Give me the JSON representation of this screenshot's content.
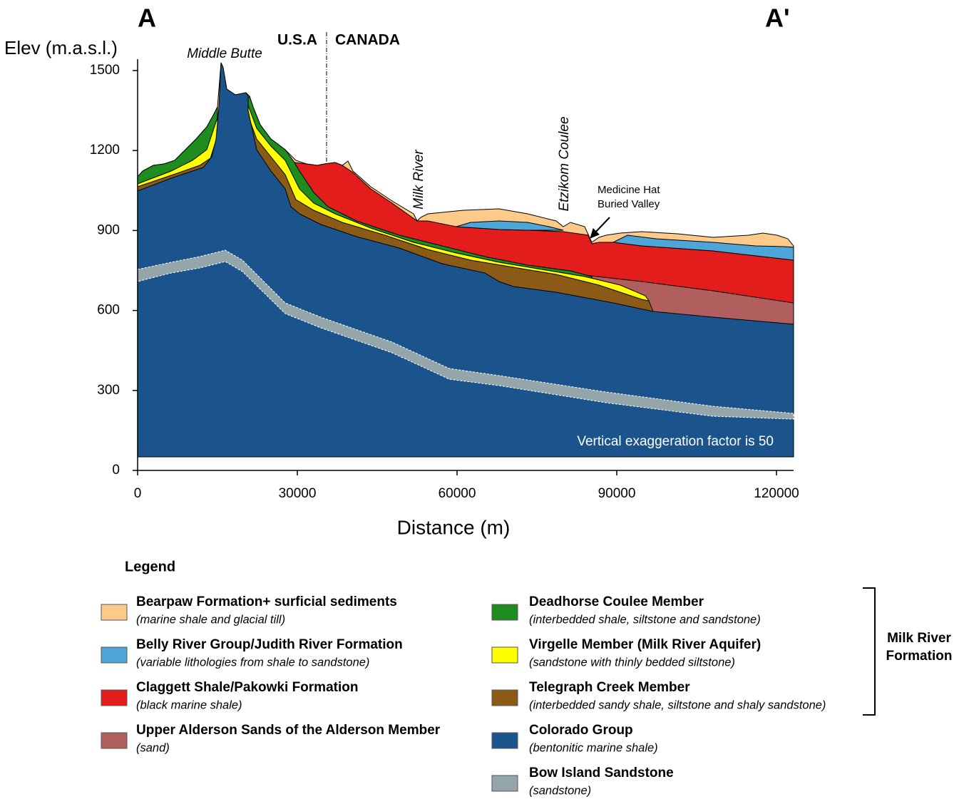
{
  "labels": {
    "section_start": "A",
    "section_end": "A'",
    "y_axis": "Elev (m.a.s.l.)",
    "x_axis": "Distance (m)",
    "summit": "Middle Butte",
    "usa": "U.S.A",
    "canada": "CANADA",
    "river": "Milk River",
    "coulee": "Etzikom Coulee",
    "valley": [
      "Medicine Hat",
      "Buried Valley"
    ],
    "note": "Vertical exaggeration factor is 50"
  },
  "axes": {
    "y_ticks": [
      0,
      300,
      600,
      900,
      1200,
      1500
    ],
    "x_ticks": [
      0,
      30000,
      60000,
      90000,
      120000
    ]
  },
  "legend": {
    "title": "Legend",
    "group": [
      "Milk River",
      "Formation"
    ],
    "items": [
      {
        "name": "Bearpaw Formation+ surficial sediments",
        "description": "(marine shale and glacial till)",
        "color": "#fdca8a"
      },
      {
        "name": "Belly River Group/Judith River Formation",
        "description": "(variable lithologies from shale to sandstone)",
        "color": "#4ea6d8"
      },
      {
        "name": "Claggett Shale/Pakowki Formation",
        "description": "(black marine shale)",
        "color": "#e31c1c"
      },
      {
        "name": "Upper Alderson Sands of the Alderson Member",
        "description": "(sand)",
        "color": "#b05e5e"
      },
      {
        "name": "Deadhorse Coulee Member",
        "description": "(interbedded shale, siltstone and sandstone)",
        "color": "#1e8c1e"
      },
      {
        "name": "Virgelle Member (Milk River Aquifer)",
        "description": "(sandstone with thinly bedded siltstone)",
        "color": "#ffff00"
      },
      {
        "name": "Telegraph Creek Member",
        "description": "(interbedded sandy shale, siltstone and shaly sandstone)",
        "color": "#8b5a16"
      },
      {
        "name": "Colorado Group",
        "description": "(bentonitic marine shale)",
        "color": "#1b548c"
      },
      {
        "name": "Bow Island Sandstone",
        "description": "(sandstone)",
        "color": "#95a6ab"
      }
    ]
  }
}
